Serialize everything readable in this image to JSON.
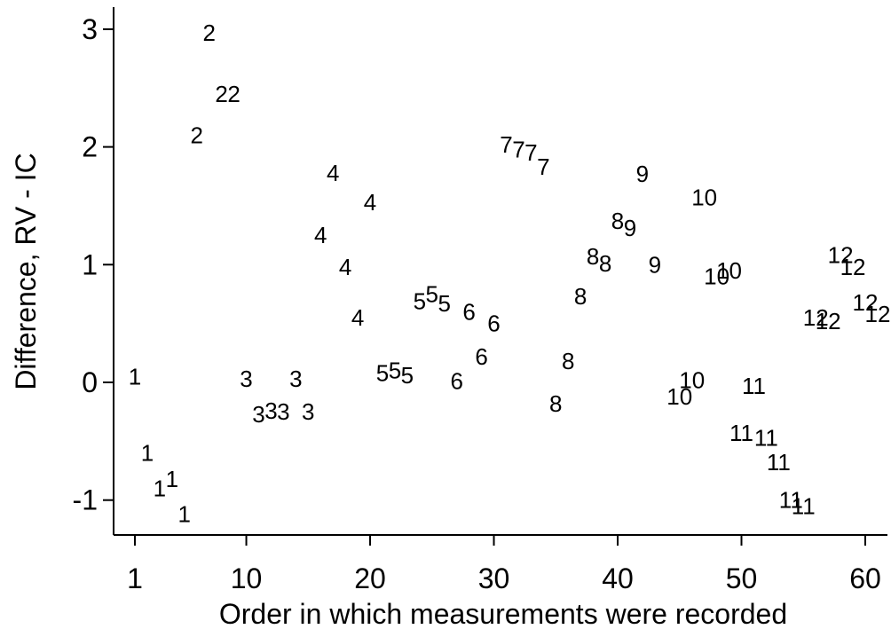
{
  "chart_data": {
    "type": "scatter",
    "title": "",
    "xlabel": "Order in which measurements were recorded",
    "ylabel": "Difference, RV - IC",
    "xlim": [
      1,
      61.3
    ],
    "ylim": [
      -1.32,
      3.2
    ],
    "xticks": [
      1,
      10,
      20,
      30,
      40,
      50,
      60
    ],
    "yticks": [
      -1,
      0,
      1,
      2,
      3
    ],
    "xtick_labels": [
      "1",
      "10",
      "20",
      "30",
      "40",
      "50",
      "60"
    ],
    "ytick_labels": [
      "-1",
      "0",
      "1",
      "2",
      "3"
    ],
    "grid": false,
    "legend": "none",
    "marker": "subject number label",
    "points": [
      {
        "x": 1,
        "y": 0.05,
        "label": "1"
      },
      {
        "x": 2,
        "y": -0.6,
        "label": "1"
      },
      {
        "x": 3,
        "y": -0.9,
        "label": "1"
      },
      {
        "x": 4,
        "y": -0.82,
        "label": "1"
      },
      {
        "x": 5,
        "y": -1.12,
        "label": "1"
      },
      {
        "x": 6,
        "y": 2.1,
        "label": "2"
      },
      {
        "x": 7,
        "y": 2.97,
        "label": "2"
      },
      {
        "x": 8,
        "y": 2.45,
        "label": "2"
      },
      {
        "x": 9,
        "y": 2.45,
        "label": "2"
      },
      {
        "x": 10,
        "y": 0.03,
        "label": "3"
      },
      {
        "x": 11,
        "y": -0.27,
        "label": "3"
      },
      {
        "x": 12,
        "y": -0.24,
        "label": "3"
      },
      {
        "x": 13,
        "y": -0.25,
        "label": "3"
      },
      {
        "x": 14,
        "y": 0.03,
        "label": "3"
      },
      {
        "x": 15,
        "y": -0.25,
        "label": "3"
      },
      {
        "x": 16,
        "y": 1.25,
        "label": "4"
      },
      {
        "x": 17,
        "y": 1.78,
        "label": "4"
      },
      {
        "x": 18,
        "y": 0.98,
        "label": "4"
      },
      {
        "x": 19,
        "y": 0.55,
        "label": "4"
      },
      {
        "x": 20,
        "y": 1.53,
        "label": "4"
      },
      {
        "x": 21,
        "y": 0.08,
        "label": "5"
      },
      {
        "x": 22,
        "y": 0.1,
        "label": "5"
      },
      {
        "x": 23,
        "y": 0.06,
        "label": "5"
      },
      {
        "x": 24,
        "y": 0.69,
        "label": "5"
      },
      {
        "x": 25,
        "y": 0.75,
        "label": "5"
      },
      {
        "x": 26,
        "y": 0.67,
        "label": "5"
      },
      {
        "x": 27,
        "y": 0.01,
        "label": "6"
      },
      {
        "x": 28,
        "y": 0.6,
        "label": "6"
      },
      {
        "x": 29,
        "y": 0.22,
        "label": "6"
      },
      {
        "x": 30,
        "y": 0.5,
        "label": "6"
      },
      {
        "x": 31,
        "y": 2.02,
        "label": "7"
      },
      {
        "x": 32,
        "y": 1.98,
        "label": "7"
      },
      {
        "x": 33,
        "y": 1.95,
        "label": "7"
      },
      {
        "x": 34,
        "y": 1.83,
        "label": "7"
      },
      {
        "x": 35,
        "y": -0.18,
        "label": "8"
      },
      {
        "x": 36,
        "y": 0.18,
        "label": "8"
      },
      {
        "x": 37,
        "y": 0.73,
        "label": "8"
      },
      {
        "x": 38,
        "y": 1.07,
        "label": "8"
      },
      {
        "x": 39,
        "y": 1.01,
        "label": "8"
      },
      {
        "x": 40,
        "y": 1.37,
        "label": "8"
      },
      {
        "x": 41,
        "y": 1.31,
        "label": "9"
      },
      {
        "x": 42,
        "y": 1.77,
        "label": "9"
      },
      {
        "x": 43,
        "y": 1.0,
        "label": "9"
      },
      {
        "x": 45,
        "y": -0.12,
        "label": "10"
      },
      {
        "x": 46,
        "y": 0.02,
        "label": "10"
      },
      {
        "x": 47,
        "y": 1.57,
        "label": "10"
      },
      {
        "x": 48,
        "y": 0.9,
        "label": "10"
      },
      {
        "x": 49,
        "y": 0.95,
        "label": "10"
      },
      {
        "x": 50,
        "y": -0.43,
        "label": "11"
      },
      {
        "x": 51,
        "y": -0.03,
        "label": "11"
      },
      {
        "x": 52,
        "y": -0.47,
        "label": "11"
      },
      {
        "x": 53,
        "y": -0.68,
        "label": "11"
      },
      {
        "x": 54,
        "y": -1.0,
        "label": "11"
      },
      {
        "x": 55,
        "y": -1.05,
        "label": "11"
      },
      {
        "x": 56,
        "y": 0.55,
        "label": "12"
      },
      {
        "x": 57,
        "y": 0.52,
        "label": "12"
      },
      {
        "x": 58,
        "y": 1.08,
        "label": "12"
      },
      {
        "x": 59,
        "y": 0.98,
        "label": "12"
      },
      {
        "x": 60,
        "y": 0.68,
        "label": "12"
      },
      {
        "x": 61,
        "y": 0.58,
        "label": "12"
      }
    ]
  }
}
